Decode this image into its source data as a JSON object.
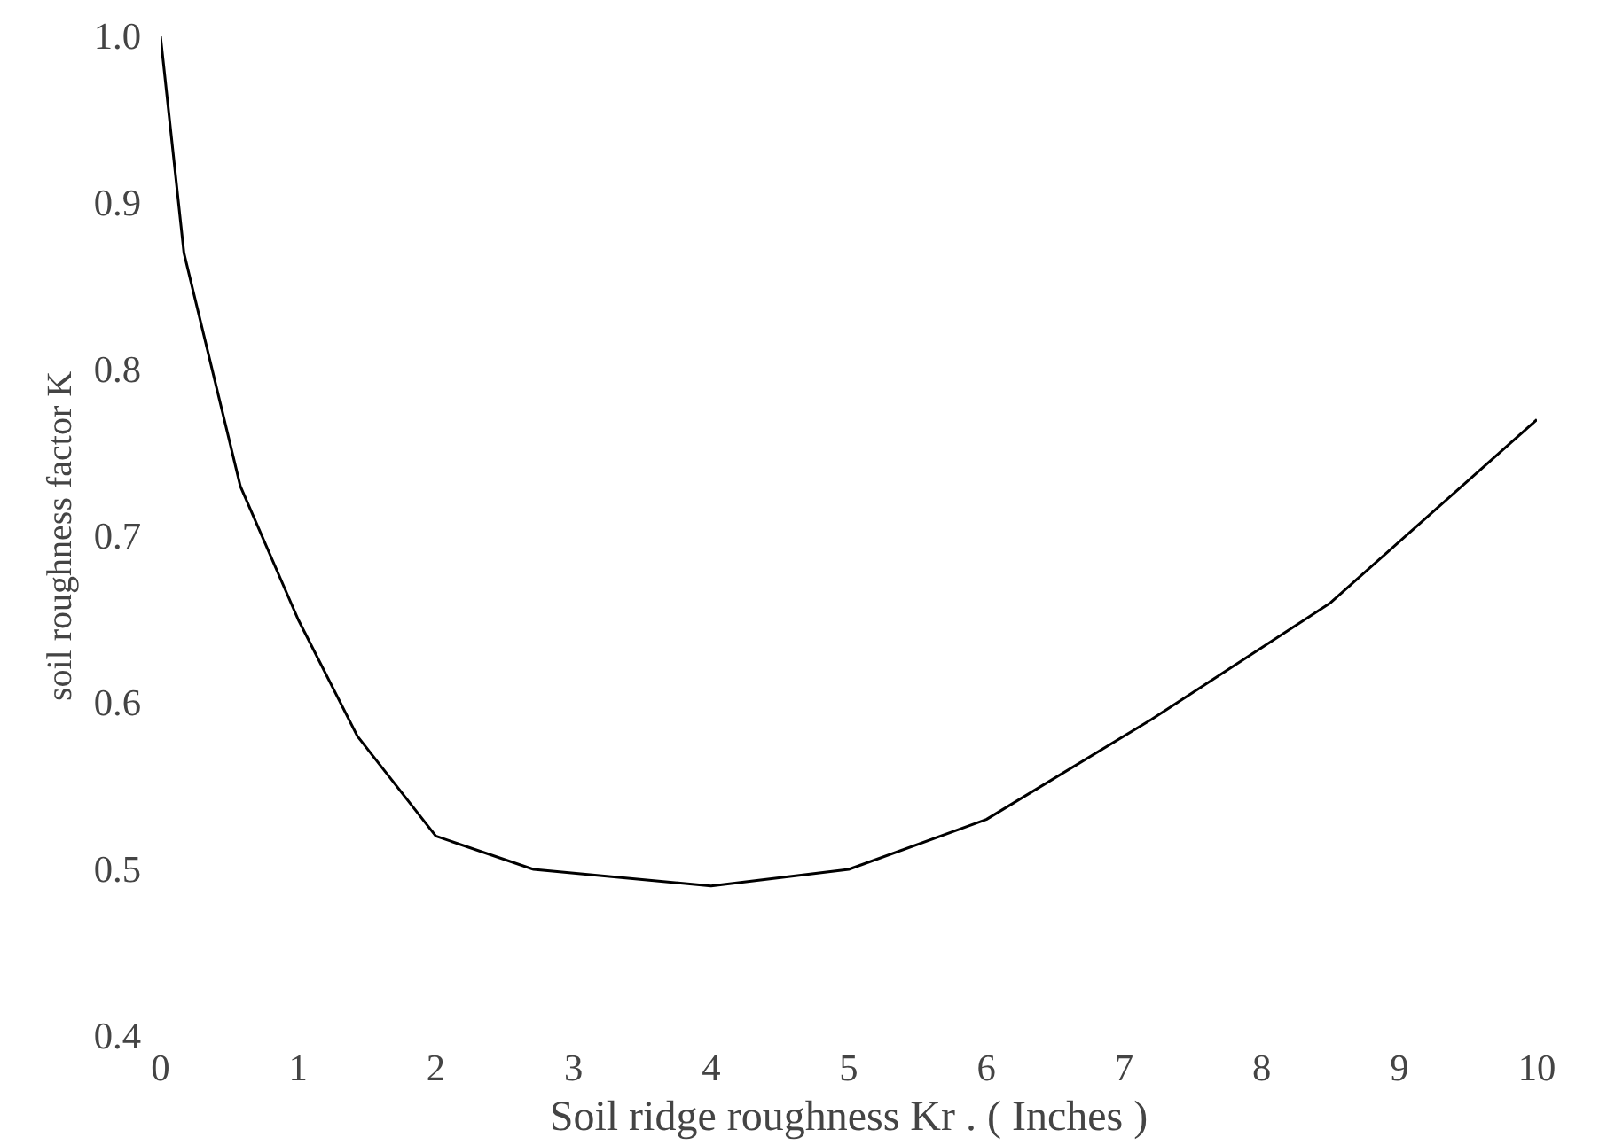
{
  "chart_data": {
    "type": "line",
    "xlabel": "Soil ridge roughness Kr . ( Inches )",
    "ylabel": "soil roughness factor K",
    "x": [
      0,
      0.17,
      0.58,
      1.0,
      1.43,
      2.0,
      2.71,
      4.0,
      5.0,
      6.0,
      7.2,
      8.5,
      10.0
    ],
    "series": [
      {
        "color": "#000000",
        "values": [
          1.0,
          0.87,
          0.73,
          0.65,
          0.58,
          0.52,
          0.5,
          0.49,
          0.5,
          0.53,
          0.59,
          0.66,
          0.77
        ]
      }
    ],
    "xlim": [
      0,
      10
    ],
    "ylim": [
      0.4,
      1.0
    ],
    "xticks": [
      0,
      1,
      2,
      3,
      4,
      5,
      6,
      7,
      8,
      9,
      10
    ],
    "yticks": [
      0.4,
      0.5,
      0.6,
      0.7,
      0.8,
      0.9,
      {
        "value": 1.0,
        "label": "1.0"
      }
    ],
    "grid": false,
    "marker": "none",
    "line_style": "solid"
  }
}
